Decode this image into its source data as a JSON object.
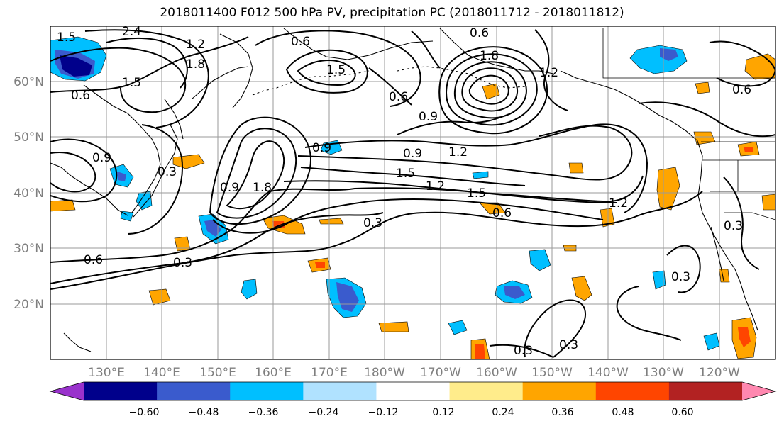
{
  "title": "2018011400 F012 500 hPa PV, precipitation PC (2018011712 - 2018011812)",
  "map": {
    "lon_labels": [
      "130°E",
      "140°E",
      "150°E",
      "160°E",
      "170°E",
      "180°W",
      "170°W",
      "160°W",
      "150°W",
      "140°W",
      "130°W",
      "120°W"
    ],
    "lat_labels": [
      "60°N",
      "50°N",
      "40°N",
      "30°N",
      "20°N"
    ],
    "contour_labels": [
      "1.5",
      "2.4",
      "0.6",
      "1.2",
      "0.6",
      "1.8",
      "1.5",
      "0.6",
      "1.8",
      "1.5",
      "0.9",
      "0.6",
      "0.9",
      "0.9",
      "1.2",
      "0.9",
      "0.3",
      "1.8",
      "1.5",
      "1.2",
      "1.5",
      "0.9",
      "0.6",
      "1.2",
      "0.3",
      "0.3",
      "0.6",
      "0.3",
      "0.3",
      "0.3",
      "0.3",
      "0.6",
      "1.2"
    ]
  },
  "colorbar": {
    "labels": [
      "−0.60",
      "−0.48",
      "−0.36",
      "−0.24",
      "−0.12",
      "0.12",
      "0.24",
      "0.36",
      "0.48",
      "0.60"
    ],
    "colors": [
      "#9932cc",
      "#00008b",
      "#3a5bcd",
      "#00bfff",
      "#b0e2ff",
      "#ffffff",
      "#ffec8b",
      "#ffa500",
      "#ff4500",
      "#b22222",
      "#ff88b0"
    ]
  }
}
